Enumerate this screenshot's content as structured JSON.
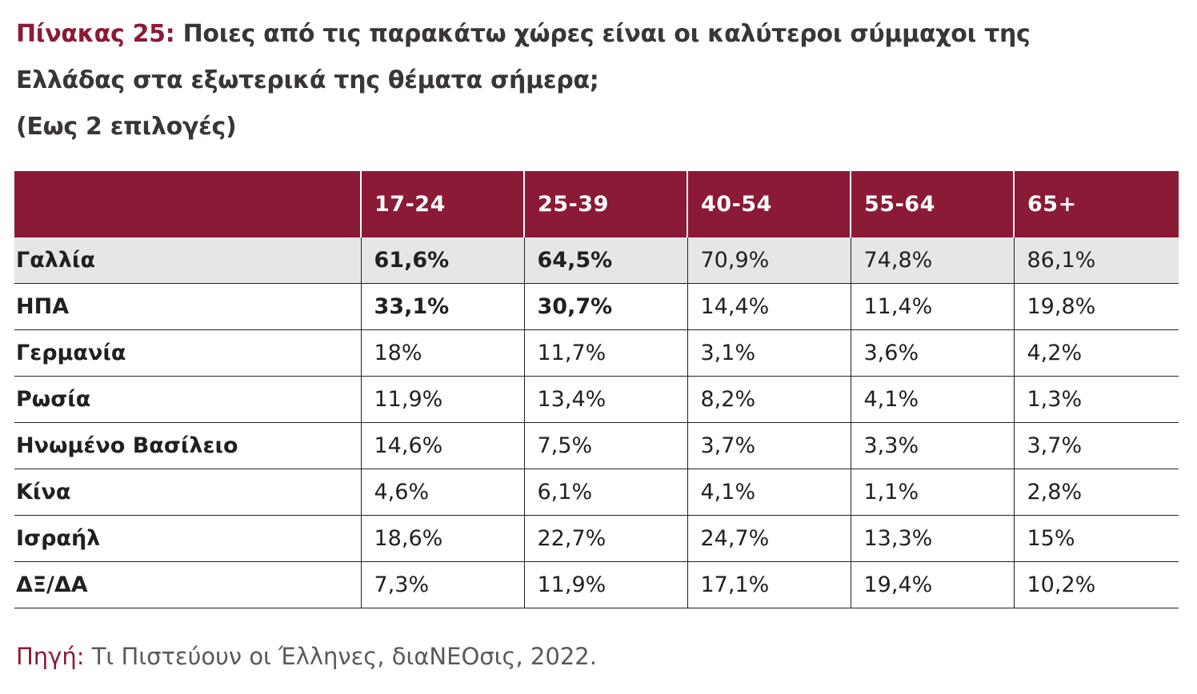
{
  "title": {
    "prefix": "Πίνακας 25:",
    "line1": " Ποιες από τις παρακάτω χώρες είναι οι καλύτεροι σύμμαχοι της",
    "line2": "Ελλάδας στα εξωτερικά της θέματα σήμερα;",
    "line3": "(Εως 2 επιλογές)"
  },
  "table": {
    "headers": [
      "",
      "17-24",
      "25-39",
      "40-54",
      "55-64",
      "65+"
    ],
    "rows": [
      {
        "label": "Γαλλία",
        "values": [
          "61,6%",
          "64,5%",
          "70,9%",
          "74,8%",
          "86,1%"
        ],
        "bold": [
          true,
          true,
          false,
          false,
          false
        ]
      },
      {
        "label": "ΗΠΑ",
        "values": [
          "33,1%",
          "30,7%",
          "14,4%",
          "11,4%",
          "19,8%"
        ],
        "bold": [
          true,
          true,
          false,
          false,
          false
        ]
      },
      {
        "label": "Γερμανία",
        "values": [
          "18%",
          "11,7%",
          "3,1%",
          "3,6%",
          "4,2%"
        ],
        "bold": [
          false,
          false,
          false,
          false,
          false
        ]
      },
      {
        "label": "Ρωσία",
        "values": [
          "11,9%",
          "13,4%",
          "8,2%",
          "4,1%",
          "1,3%"
        ],
        "bold": [
          false,
          false,
          false,
          false,
          false
        ]
      },
      {
        "label": "Ηνωμένο Βασίλειο",
        "values": [
          "14,6%",
          "7,5%",
          "3,7%",
          "3,3%",
          "3,7%"
        ],
        "bold": [
          false,
          false,
          false,
          false,
          false
        ]
      },
      {
        "label": "Κίνα",
        "values": [
          "4,6%",
          "6,1%",
          "4,1%",
          "1,1%",
          "2,8%"
        ],
        "bold": [
          false,
          false,
          false,
          false,
          false
        ]
      },
      {
        "label": "Ισραήλ",
        "values": [
          "18,6%",
          "22,7%",
          "24,7%",
          "13,3%",
          "15%"
        ],
        "bold": [
          false,
          false,
          false,
          false,
          false
        ]
      },
      {
        "label": "ΔΞ/ΔΑ",
        "values": [
          "7,3%",
          "11,9%",
          "17,1%",
          "19,4%",
          "10,2%"
        ],
        "bold": [
          false,
          false,
          false,
          false,
          false
        ]
      }
    ]
  },
  "source": {
    "label": "Πηγή:",
    "text": " Τι Πιστεύουν οι Έλληνες, διαΝΕΟσις, 2022."
  },
  "colors": {
    "accent": "#8b1a37",
    "header_text": "#ffffff",
    "highlight_row": "#e6e6e6",
    "body_text": "#231f20",
    "source_text": "#58595b"
  }
}
